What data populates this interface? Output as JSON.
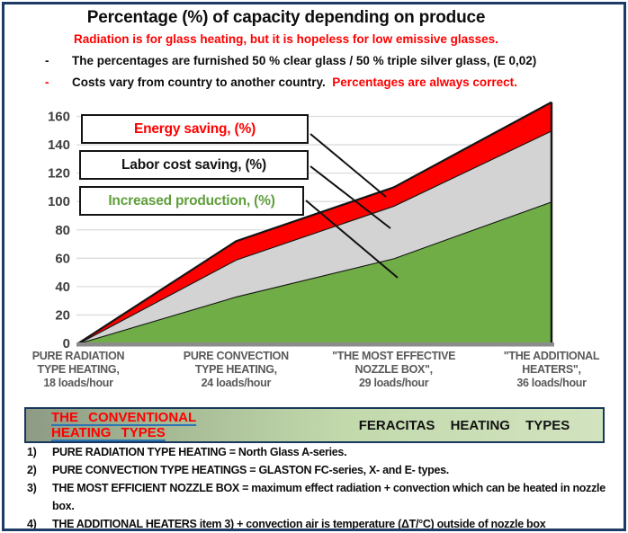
{
  "header": {
    "title": "Percentage (%) of capacity depending on produce",
    "subtitle_red": "Radiation is for glass heating, but it is hopeless for low emissive glasses.",
    "bullet1": {
      "dash": "-",
      "text": "The percentages are furnished 50 % clear glass / 50 % triple silver glass, (E 0,02)"
    },
    "bullet2": {
      "dash": "-",
      "text_black": "Costs vary from country to another country.  ",
      "text_red": "Percentages are always correct."
    }
  },
  "chart_data": {
    "type": "area",
    "stacked": true,
    "title": "Percentage (%) of capacity depending on produce",
    "xlabel": "",
    "ylabel": "",
    "categories": [
      [
        "PURE RADIATION",
        "TYPE HEATING,",
        "18 loads/hour"
      ],
      [
        "PURE CONVECTION",
        "TYPE HEATING,",
        "24 loads/hour"
      ],
      [
        "\"THE MOST EFFECTIVE",
        "NOZZLE BOX\",",
        "29 loads/hour"
      ],
      [
        "\"THE ADDITIONAL",
        "HEATERS\",",
        "36 loads/hour"
      ]
    ],
    "series": [
      {
        "name": "Increased production, (%)",
        "color": "#70ad47",
        "values": [
          0,
          33,
          60,
          100
        ]
      },
      {
        "name": "Labor cost saving, (%)",
        "color": "#d3d3d3",
        "values": [
          0,
          26,
          37,
          50
        ]
      },
      {
        "name": "Energy saving, (%)",
        "color": "#fe0000",
        "values": [
          0,
          13,
          13,
          20
        ]
      }
    ],
    "cumulative_tops": {
      "increased_production": [
        0,
        33,
        60,
        100
      ],
      "labor_cost_saving": [
        0,
        59,
        97,
        150
      ],
      "energy_saving": [
        0,
        72,
        110,
        170
      ]
    },
    "yticks": [
      0,
      20,
      40,
      60,
      80,
      100,
      120,
      140,
      160
    ],
    "ylim": [
      0,
      172
    ],
    "grid": true,
    "legend_position": "overlaid upper-left"
  },
  "legend": {
    "items": [
      {
        "label": "Energy saving, (%)",
        "color": "#fe0000"
      },
      {
        "label": "Labor cost saving, (%)",
        "color": "#141414"
      },
      {
        "label": "Increased production, (%)",
        "color": "#5f9e3c"
      }
    ]
  },
  "banner": {
    "left": "THE CONVENTIONAL HEATING TYPES",
    "right": "FERACITAS HEATING TYPES"
  },
  "footnotes": [
    {
      "num": "1)",
      "text": "PURE RADIATION TYPE HEATING = North Glass A-series."
    },
    {
      "num": "2)",
      "text": "PURE CONVECTION TYPE HEATINGS = GLASTON FC-series, X- and E- types."
    },
    {
      "num": "3)",
      "text": "THE MOST EFFICIENT NOZZLE BOX = maximum effect radiation + convection which can be heated in nozzle box."
    },
    {
      "num": "4)",
      "text": "THE ADDITIONAL HEATERS item 3) + convection air is temperature (ΔT/°C) outside of nozzle box"
    }
  ],
  "colors": {
    "red": "#fe0000",
    "green_fill": "#70ad47",
    "gray_fill": "#d3d3d3",
    "frame_navy": "#1e3a66",
    "banner_border": "#17375e",
    "x_label_gray": "#595959",
    "y_label_gray": "#3f3f3f",
    "gridline": "#dcdcdc",
    "axis_bar": "#8c8c8c"
  }
}
